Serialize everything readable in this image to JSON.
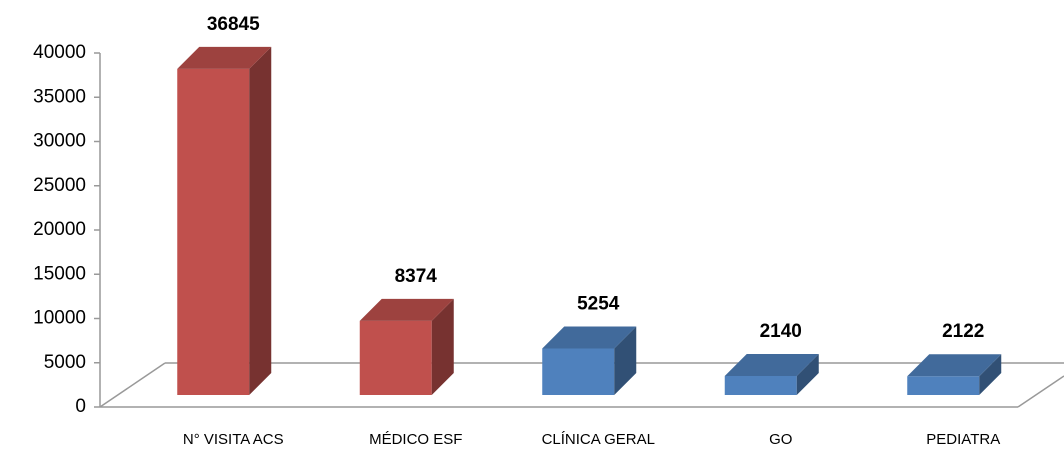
{
  "chart_data": {
    "type": "bar3d",
    "categories": [
      "N° VISITA ACS",
      "MÉDICO ESF",
      "CLÍNICA GERAL",
      "GO",
      "PEDIATRA"
    ],
    "values": [
      36845,
      8374,
      5254,
      2140,
      2122
    ],
    "colors": [
      "#c0504d",
      "#c0504d",
      "#4f81bd",
      "#4f81bd",
      "#4f81bd"
    ],
    "ylim": [
      0,
      40000
    ],
    "yticks": [
      0,
      5000,
      10000,
      15000,
      20000,
      25000,
      30000,
      35000,
      40000
    ]
  }
}
